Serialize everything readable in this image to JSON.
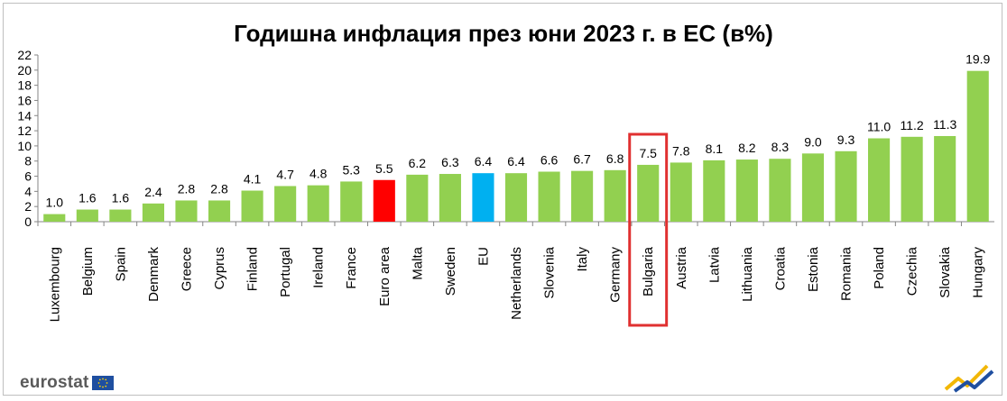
{
  "chart_data": {
    "type": "bar",
    "title": "Годишна инфлация през юни 2023 г. в ЕС (в%)",
    "categories": [
      "Luxembourg",
      "Belgium",
      "Spain",
      "Denmark",
      "Greece",
      "Cyprus",
      "Finland",
      "Portugal",
      "Ireland",
      "France",
      "Euro area",
      "Malta",
      "Sweden",
      "EU",
      "Netherlands",
      "Slovenia",
      "Italy",
      "Germany",
      "Bulgaria",
      "Austria",
      "Latvia",
      "Lithuania",
      "Croatia",
      "Estonia",
      "Romania",
      "Poland",
      "Czechia",
      "Slovakia",
      "Hungary"
    ],
    "values": [
      1.0,
      1.6,
      1.6,
      2.4,
      2.8,
      2.8,
      4.1,
      4.7,
      4.8,
      5.3,
      5.5,
      6.2,
      6.3,
      6.4,
      6.4,
      6.6,
      6.7,
      6.8,
      7.5,
      7.8,
      8.1,
      8.2,
      8.3,
      9.0,
      9.3,
      11.0,
      11.2,
      11.3,
      19.9
    ],
    "value_labels": [
      "1.0",
      "1.6",
      "1.6",
      "2.4",
      "2.8",
      "2.8",
      "4.1",
      "4.7",
      "4.8",
      "5.3",
      "5.5",
      "6.2",
      "6.3",
      "6.4",
      "6.4",
      "6.6",
      "6.7",
      "6.8",
      "7.5",
      "7.8",
      "8.1",
      "8.2",
      "8.3",
      "9.0",
      "9.3",
      "11.0",
      "11.2",
      "11.3",
      "19.9"
    ],
    "ylim": [
      0,
      22
    ],
    "yticks": [
      "0",
      "2",
      "4",
      "6",
      "8",
      "10",
      "12",
      "14",
      "16",
      "18",
      "20",
      "22"
    ],
    "xlabel": "",
    "ylabel": "",
    "grid": false,
    "legend": "none",
    "highlighted_category": "Bulgaria",
    "colors": {
      "default_bar": "#92d050",
      "Euro area": "#ff0000",
      "EU": "#00b0f0",
      "highlight_box": "#e03030",
      "axis": "#868686"
    }
  },
  "branding": {
    "logo_text": "eurostat",
    "logo_icon": "eu-flag-icon",
    "corner_icon": "chart-trend-icon"
  }
}
